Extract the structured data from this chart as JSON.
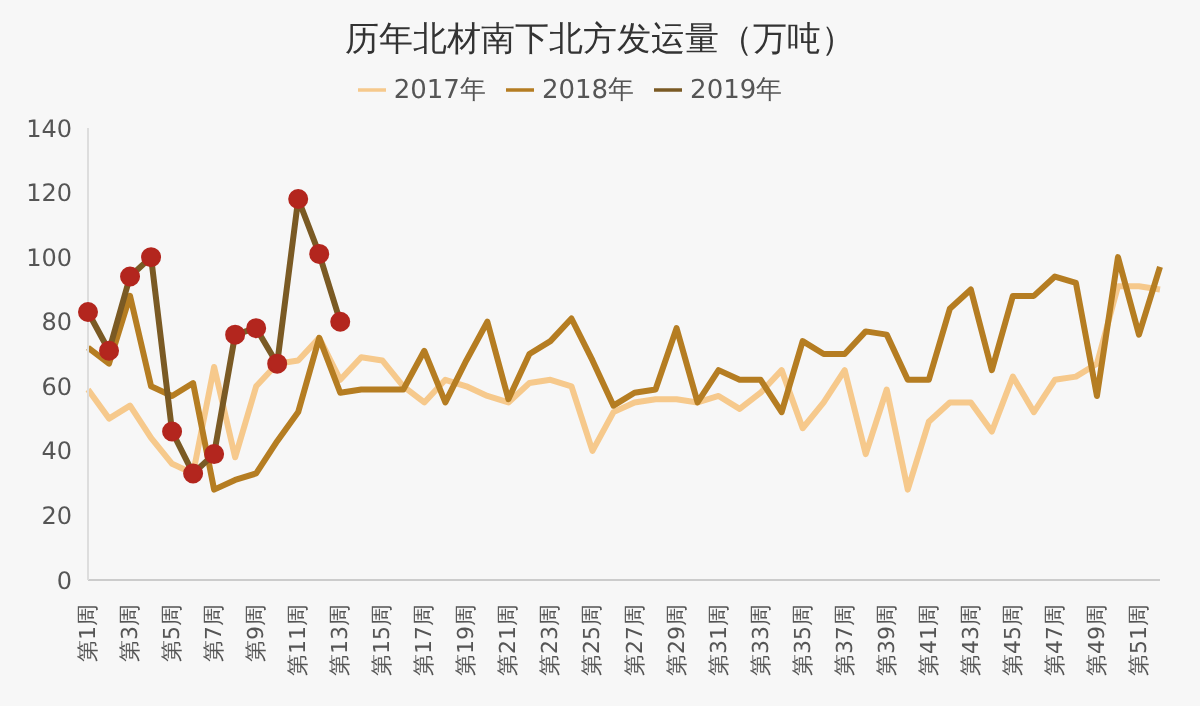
{
  "chart_data": {
    "type": "line",
    "title": "历年北材南下北方发运量（万吨）",
    "categories": [
      "第1周",
      null,
      "第3周",
      null,
      "第5周",
      null,
      "第7周",
      null,
      "第9周",
      null,
      "第11周",
      null,
      "第13周",
      null,
      "第15周",
      null,
      "第17周",
      null,
      "第19周",
      null,
      "第21周",
      null,
      "第23周",
      null,
      "第25周",
      null,
      "第27周",
      null,
      "第29周",
      null,
      "第31周",
      null,
      "第33周",
      null,
      "第35周",
      null,
      "第37周",
      null,
      "第39周",
      null,
      "第41周",
      null,
      "第43周",
      null,
      "第45周",
      null,
      "第47周",
      null,
      "第49周",
      null,
      "第51周",
      null
    ],
    "series": [
      {
        "name": "2017年",
        "color": "#f6c98c",
        "values": [
          59,
          50,
          54,
          44,
          36,
          33,
          66,
          38,
          60,
          67,
          68,
          75,
          62,
          69,
          68,
          60,
          55,
          62,
          60,
          57,
          55,
          61,
          62,
          60,
          40,
          52,
          55,
          56,
          56,
          55,
          57,
          53,
          58,
          65,
          47,
          55,
          65,
          39,
          59,
          28,
          49,
          55,
          55,
          46,
          63,
          52,
          62,
          63,
          67,
          91,
          91,
          90
        ]
      },
      {
        "name": "2018年",
        "color": "#b57d22",
        "values": [
          72,
          67,
          88,
          60,
          57,
          61,
          28,
          31,
          33,
          43,
          52,
          75,
          58,
          59,
          59,
          59,
          71,
          55,
          68,
          80,
          56,
          70,
          74,
          81,
          68,
          54,
          58,
          59,
          78,
          55,
          65,
          62,
          62,
          52,
          74,
          70,
          70,
          77,
          76,
          62,
          62,
          84,
          90,
          65,
          88,
          88,
          94,
          92,
          57,
          100,
          76,
          97
        ]
      },
      {
        "name": "2019年",
        "color": "#7a5a24",
        "marker": "circle",
        "colors": [
          "#b3261e",
          "#b3261e",
          "#b3261e",
          "#b3261e",
          "#b3261e",
          "#b3261e",
          "#b3261e",
          "#b3261e",
          "#b3261e",
          "#b3261e",
          "#b3261e",
          "#b3261e",
          "#b3261e",
          null,
          null,
          null,
          null,
          null,
          null,
          null,
          null,
          null,
          null,
          null,
          null,
          null,
          null,
          null,
          null,
          null,
          null,
          null,
          null,
          null,
          null,
          null,
          null,
          null,
          null,
          null,
          null,
          null,
          null,
          null,
          null,
          null,
          null,
          null,
          null,
          null,
          null,
          null
        ],
        "values": [
          83,
          71,
          94,
          100,
          46,
          33,
          39,
          76,
          78,
          67,
          118,
          101,
          80,
          null,
          null,
          null,
          null,
          null,
          null,
          null,
          null,
          null,
          null,
          null,
          null,
          null,
          null,
          null,
          null,
          null,
          null,
          null,
          null,
          null,
          null,
          null,
          null,
          null,
          null,
          null,
          null,
          null,
          null,
          null,
          null,
          null,
          null,
          null,
          null,
          null,
          null,
          null
        ]
      }
    ],
    "ylim": [
      0,
      140
    ],
    "yticks": [
      0,
      20,
      40,
      60,
      80,
      100,
      120,
      140
    ],
    "grid": false,
    "legend": "top"
  }
}
